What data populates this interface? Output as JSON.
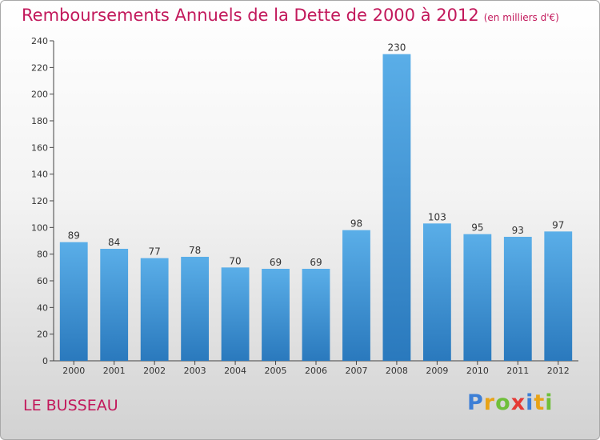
{
  "header": {
    "title": "Remboursements Annuels de la Dette de 2000 à 2012",
    "unit": "(en milliers d'€)"
  },
  "footer": {
    "place": "LE BUSSEAU",
    "logo_letters": [
      {
        "char": "P",
        "color": "#3d7fd6"
      },
      {
        "char": "r",
        "color": "#e8a317"
      },
      {
        "char": "o",
        "color": "#6fbf3a"
      },
      {
        "char": "x",
        "color": "#e53935"
      },
      {
        "char": "i",
        "color": "#3d7fd6"
      },
      {
        "char": "t",
        "color": "#e8a317"
      },
      {
        "char": "i",
        "color": "#6fbf3a"
      }
    ]
  },
  "chart_data": {
    "type": "bar",
    "title": "Remboursements Annuels de la Dette de 2000 à 2012",
    "categories": [
      "2000",
      "2001",
      "2002",
      "2003",
      "2004",
      "2005",
      "2006",
      "2007",
      "2008",
      "2009",
      "2010",
      "2011",
      "2012"
    ],
    "values": [
      89,
      84,
      77,
      78,
      70,
      69,
      69,
      98,
      230,
      103,
      95,
      93,
      97
    ],
    "ylim": [
      0,
      240
    ],
    "yticks": [
      0,
      20,
      40,
      60,
      80,
      100,
      120,
      140,
      160,
      180,
      200,
      220,
      240
    ],
    "grid": false,
    "colors": {
      "bar_light": "#5aaee8",
      "bar_dark": "#2a79bd"
    }
  }
}
